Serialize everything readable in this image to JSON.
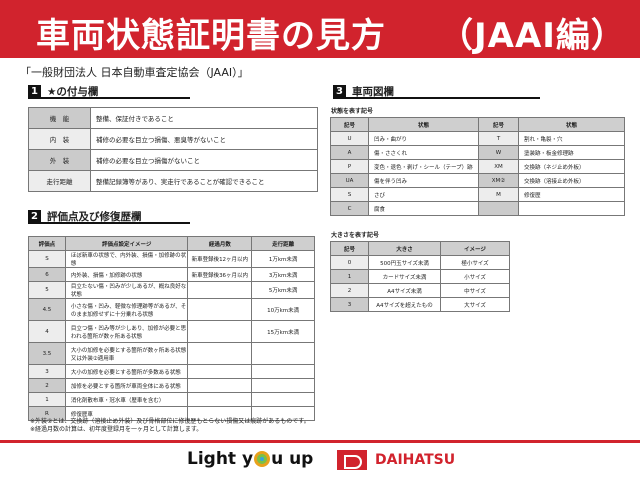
{
  "title": "車両状態証明書の見方　　（JAAI編）",
  "subtitle": "「一般財団法人 日本自動車査定協会（JAAI）」",
  "s1": {
    "num": "1",
    "title": "★の付与欄",
    "rows": [
      [
        "機　能",
        "整備、保証付きであること"
      ],
      [
        "内　装",
        "補修の必要な目立つ損傷、悪臭等がないこと"
      ],
      [
        "外　装",
        "補修の必要な目立つ損傷がないこと"
      ],
      [
        "走行距離",
        "整備記録簿等があり、実走行であることが確認できること"
      ]
    ]
  },
  "s2": {
    "num": "2",
    "title": "評価点及び修復歴欄",
    "headers": [
      "評価点",
      "評価点設定イメージ",
      "経過月数",
      "走行距離"
    ],
    "rows": [
      [
        "S",
        "ほぼ新車の状態で、内外装、損傷・加修跡の状態",
        "新車登録後12ヶ月以内",
        "1万km未満"
      ],
      [
        "6",
        "内外装、損傷・加修跡の状態",
        "新車登録後36ヶ月以内",
        "3万km未満"
      ],
      [
        "5",
        "目立たない傷・凹みが少しあるが、概ね良好な状態",
        "",
        "5万km未満"
      ],
      [
        "4.5",
        "小さな傷・凹み、軽微な修理跡等があるが、そのまま加修せずに十分乗れる状態",
        "",
        "10万km未満"
      ],
      [
        "4",
        "目立つ傷・凹み等が少しあり、加修が必要と思われる箇所が数ヶ所ある状態",
        "",
        "15万km未満"
      ],
      [
        "3.5",
        "大小の加修を必要とする箇所が数ヶ所ある状態又は外装②適用車",
        "",
        ""
      ],
      [
        "3",
        "大小の加修を必要とする箇所が多数ある状態",
        "",
        ""
      ],
      [
        "2",
        "加修を必要とする箇所が車両全体にある状態",
        "",
        ""
      ],
      [
        "1",
        "消化剤散布車・冠水車（歴車を含む）",
        "",
        ""
      ],
      [
        "R",
        "修復歴車",
        "",
        ""
      ]
    ],
    "notes": [
      "※外装②とは、交換跡（溶接止め外装）及び骨格部位に修復歴もとらない損傷又は痕跡があるものです。",
      "※経過月数の計算は、初年度登録月を一ヶ月として計算します。"
    ]
  },
  "s3": {
    "num": "3",
    "title": "車両図欄",
    "state_label": "状態を表す記号",
    "state_headers": [
      "記号",
      "状態",
      "記号",
      "状態"
    ],
    "state_rows": [
      [
        "U",
        "凹み・曲がり",
        "T",
        "割れ・亀裂・穴"
      ],
      [
        "A",
        "傷・ささくれ",
        "W",
        "塗装跡・板金修理跡"
      ],
      [
        "P",
        "変色・退色・剥げ・シール（テープ）跡",
        "XM",
        "交換跡（ネジ止め外板）"
      ],
      [
        "UA",
        "傷を伴う凹み",
        "XM②",
        "交換跡（溶接止め外板）"
      ],
      [
        "S",
        "さび",
        "M",
        "修復歴"
      ],
      [
        "C",
        "腐食",
        "",
        ""
      ]
    ],
    "size_label": "大きさを表す記号",
    "size_headers": [
      "記号",
      "大きさ",
      "イメージ"
    ],
    "size_rows": [
      [
        "0",
        "500円玉サイズ未満",
        "極小サイズ"
      ],
      [
        "1",
        "カードサイズ未満",
        "小サイズ"
      ],
      [
        "2",
        "A4サイズ未満",
        "中サイズ"
      ],
      [
        "3",
        "A4サイズを超えたもの",
        "大サイズ"
      ]
    ]
  },
  "footer": {
    "slogan_pre": "Light y",
    "slogan_post": "u up",
    "brand": "DAIHATSU"
  },
  "colors": {
    "accent": "#d1232d"
  }
}
